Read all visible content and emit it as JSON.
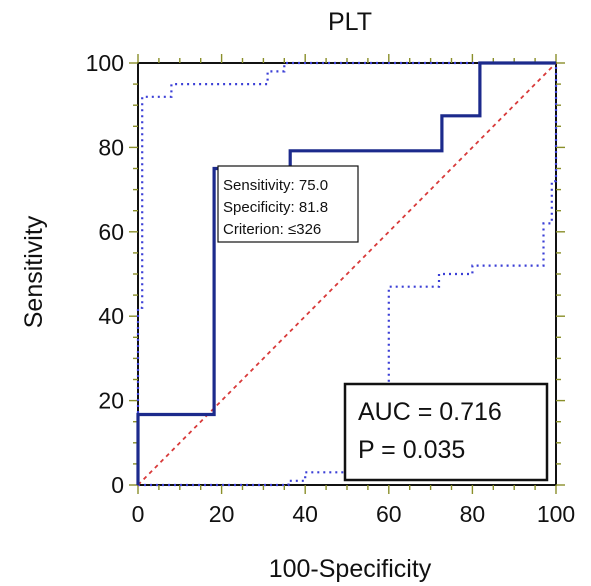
{
  "chart_data": {
    "type": "line",
    "title": "PLT",
    "xlabel": "100-Specificity",
    "ylabel": "Sensitivity",
    "xlim": [
      0,
      100
    ],
    "ylim": [
      0,
      100
    ],
    "x_ticks": [
      "0",
      "20",
      "40",
      "60",
      "80",
      "100"
    ],
    "y_ticks": [
      "0",
      "20",
      "40",
      "60",
      "80",
      "100"
    ],
    "grid": false,
    "colors": {
      "roc": "#1c2a8c",
      "ci": "#3b3fd6",
      "diagonal": "#d83a3a",
      "tick_marks": "#8a8f2a"
    },
    "series": [
      {
        "role": "roc",
        "style": "solid",
        "x": [
          0,
          0,
          18.2,
          18.2,
          36.4,
          36.4,
          72.7,
          72.7,
          81.8,
          81.8,
          100
        ],
        "y": [
          0,
          16.7,
          16.7,
          75.0,
          75.0,
          79.2,
          79.2,
          87.5,
          87.5,
          100,
          100
        ]
      },
      {
        "role": "ci-upper",
        "style": "dotted",
        "x": [
          0,
          0,
          1,
          1,
          8,
          8,
          31,
          31,
          35,
          35,
          100
        ],
        "y": [
          0,
          42,
          42,
          92,
          92,
          95,
          95,
          98,
          98,
          100,
          100
        ]
      },
      {
        "role": "ci-lower",
        "style": "dotted",
        "x": [
          0,
          36,
          36,
          40,
          40,
          58,
          58,
          60,
          60,
          72,
          72,
          80,
          80,
          97,
          97,
          99,
          99,
          100,
          100
        ],
        "y": [
          0,
          0,
          1,
          1,
          3,
          3,
          22,
          22,
          47,
          47,
          50,
          50,
          52,
          52,
          62,
          62,
          72,
          72,
          100
        ]
      },
      {
        "role": "reference",
        "style": "dashed",
        "x": [
          0,
          100
        ],
        "y": [
          0,
          100
        ]
      }
    ],
    "annotation": {
      "lines": [
        "Sensitivity: 75.0",
        "Specificity: 81.8",
        "Criterion: ≤326"
      ],
      "point": [
        18.2,
        75.0
      ]
    },
    "stats": {
      "auc_text": "AUC = 0.716",
      "p_text": "P = 0.035"
    }
  }
}
